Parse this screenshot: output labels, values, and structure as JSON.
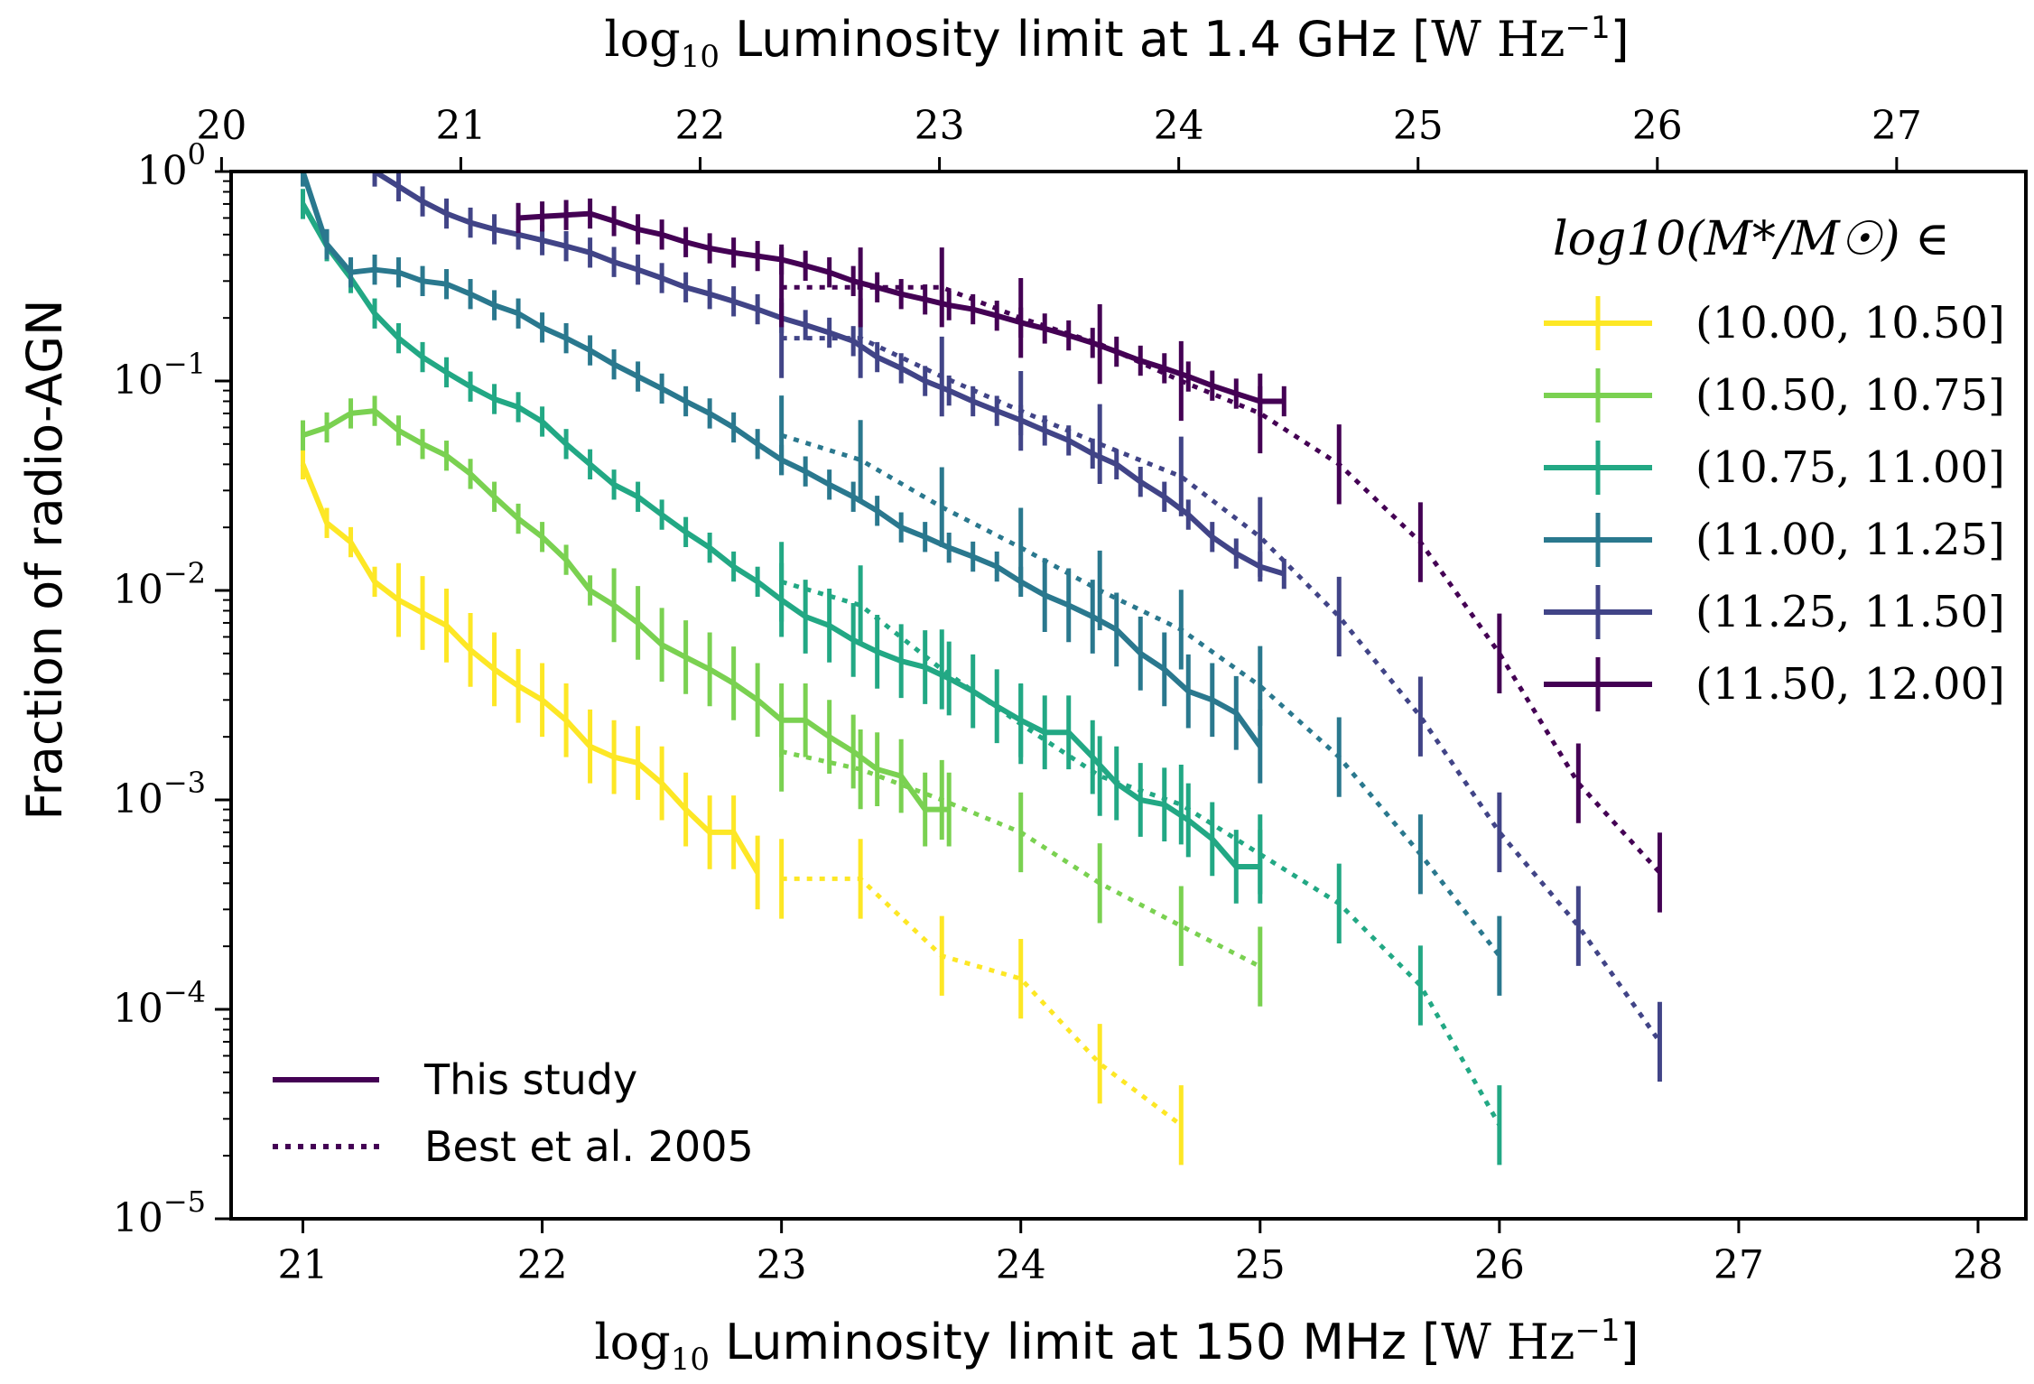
{
  "chart_data": {
    "type": "line",
    "xlabel": "log10 Luminosity limit at 150 MHz [W Hz^-1]",
    "x2label": "log10 Luminosity limit at 1.4 GHz [W Hz^-1]",
    "ylabel": "Fraction of radio-AGN",
    "xlim": [
      20.7,
      28.2
    ],
    "ylim_log10": [
      -5,
      0
    ],
    "yscale": "log",
    "x_ticks": [
      "21",
      "22",
      "23",
      "24",
      "25",
      "26",
      "27",
      "28"
    ],
    "x2_ticks": [
      "20",
      "21",
      "22",
      "23",
      "24",
      "25",
      "26",
      "27"
    ],
    "y_ticks": [
      "10^0",
      "10^-1",
      "10^-2",
      "10^-3",
      "10^-4",
      "10^-5"
    ],
    "legend_title": "log10(M*/M☉) ∈",
    "legend_placement": "top-right",
    "style_legend": [
      "This study",
      "Best et al. 2005"
    ],
    "style_legend_placement": "bottom-left",
    "series": [
      {
        "name": "(10.00, 10.50]",
        "color": "#fde725",
        "this_study": [
          [
            21.0,
            0.04
          ],
          [
            21.1,
            0.021
          ],
          [
            21.2,
            0.017
          ],
          [
            21.3,
            0.011
          ],
          [
            21.4,
            0.009
          ],
          [
            21.5,
            0.0078
          ],
          [
            21.6,
            0.0068
          ],
          [
            21.7,
            0.0052
          ],
          [
            21.8,
            0.0042
          ],
          [
            21.9,
            0.0035
          ],
          [
            22.0,
            0.003
          ],
          [
            22.1,
            0.0024
          ],
          [
            22.2,
            0.0018
          ],
          [
            22.3,
            0.0016
          ],
          [
            22.4,
            0.0015
          ],
          [
            22.5,
            0.0012
          ],
          [
            22.6,
            0.0009
          ],
          [
            22.7,
            0.0007
          ],
          [
            22.8,
            0.0007
          ],
          [
            22.9,
            0.00045
          ]
        ],
        "best2005": [
          [
            23.0,
            0.00042
          ],
          [
            23.33,
            0.00042
          ],
          [
            23.67,
            0.00018
          ],
          [
            24.0,
            0.00014
          ],
          [
            24.33,
            5.5e-05
          ],
          [
            24.67,
            2.8e-05
          ]
        ]
      },
      {
        "name": "(10.50, 10.75]",
        "color": "#7ad151",
        "this_study": [
          [
            21.0,
            0.055
          ],
          [
            21.1,
            0.06
          ],
          [
            21.2,
            0.07
          ],
          [
            21.3,
            0.072
          ],
          [
            21.4,
            0.058
          ],
          [
            21.5,
            0.05
          ],
          [
            21.6,
            0.044
          ],
          [
            21.7,
            0.036
          ],
          [
            21.8,
            0.028
          ],
          [
            21.9,
            0.022
          ],
          [
            22.0,
            0.018
          ],
          [
            22.1,
            0.014
          ],
          [
            22.2,
            0.01
          ],
          [
            22.3,
            0.0085
          ],
          [
            22.4,
            0.007
          ],
          [
            22.5,
            0.0055
          ],
          [
            22.6,
            0.0048
          ],
          [
            22.7,
            0.0042
          ],
          [
            22.8,
            0.0036
          ],
          [
            22.9,
            0.003
          ],
          [
            23.0,
            0.0024
          ],
          [
            23.1,
            0.0024
          ],
          [
            23.2,
            0.002
          ],
          [
            23.3,
            0.0017
          ],
          [
            23.4,
            0.0014
          ],
          [
            23.5,
            0.0013
          ],
          [
            23.6,
            0.0009
          ],
          [
            23.7,
            0.0009
          ]
        ],
        "best2005": [
          [
            23.0,
            0.0017
          ],
          [
            23.33,
            0.0014
          ],
          [
            23.67,
            0.001
          ],
          [
            24.0,
            0.0007
          ],
          [
            24.33,
            0.0004
          ],
          [
            24.67,
            0.00025
          ],
          [
            25.0,
            0.00016
          ]
        ]
      },
      {
        "name": "(10.75, 11.00]",
        "color": "#22a884",
        "this_study": [
          [
            21.0,
            0.7
          ],
          [
            21.1,
            0.44
          ],
          [
            21.2,
            0.31
          ],
          [
            21.3,
            0.21
          ],
          [
            21.4,
            0.16
          ],
          [
            21.5,
            0.13
          ],
          [
            21.6,
            0.11
          ],
          [
            21.7,
            0.094
          ],
          [
            21.8,
            0.082
          ],
          [
            21.9,
            0.075
          ],
          [
            22.0,
            0.064
          ],
          [
            22.1,
            0.05
          ],
          [
            22.2,
            0.04
          ],
          [
            22.3,
            0.032
          ],
          [
            22.4,
            0.028
          ],
          [
            22.5,
            0.023
          ],
          [
            22.6,
            0.019
          ],
          [
            22.7,
            0.016
          ],
          [
            22.8,
            0.013
          ],
          [
            22.9,
            0.011
          ],
          [
            23.0,
            0.009
          ],
          [
            23.1,
            0.0075
          ],
          [
            23.2,
            0.0068
          ],
          [
            23.3,
            0.0058
          ],
          [
            23.4,
            0.0051
          ],
          [
            23.5,
            0.0046
          ],
          [
            23.6,
            0.0043
          ],
          [
            23.7,
            0.0038
          ],
          [
            23.8,
            0.0033
          ],
          [
            23.9,
            0.0028
          ],
          [
            24.0,
            0.0024
          ],
          [
            24.1,
            0.0021
          ],
          [
            24.2,
            0.0021
          ],
          [
            24.3,
            0.0016
          ],
          [
            24.4,
            0.0012
          ],
          [
            24.5,
            0.001
          ],
          [
            24.6,
            0.00095
          ],
          [
            24.7,
            0.0008
          ],
          [
            24.8,
            0.00065
          ],
          [
            24.9,
            0.00048
          ],
          [
            25.0,
            0.00048
          ]
        ],
        "best2005": [
          [
            23.0,
            0.011
          ],
          [
            23.33,
            0.0085
          ],
          [
            23.67,
            0.0042
          ],
          [
            24.0,
            0.0023
          ],
          [
            24.33,
            0.0013
          ],
          [
            24.67,
            0.00095
          ],
          [
            25.0,
            0.00055
          ],
          [
            25.33,
            0.00032
          ],
          [
            25.67,
            0.00013
          ],
          [
            26.0,
            2.8e-05
          ]
        ]
      },
      {
        "name": "(11.00, 11.25]",
        "color": "#2a788e",
        "this_study": [
          [
            21.0,
            1.0
          ],
          [
            21.1,
            0.45
          ],
          [
            21.2,
            0.33
          ],
          [
            21.3,
            0.34
          ],
          [
            21.4,
            0.33
          ],
          [
            21.5,
            0.3
          ],
          [
            21.6,
            0.29
          ],
          [
            21.7,
            0.26
          ],
          [
            21.8,
            0.23
          ],
          [
            21.9,
            0.21
          ],
          [
            22.0,
            0.18
          ],
          [
            22.1,
            0.16
          ],
          [
            22.2,
            0.14
          ],
          [
            22.3,
            0.12
          ],
          [
            22.4,
            0.105
          ],
          [
            22.5,
            0.092
          ],
          [
            22.6,
            0.08
          ],
          [
            22.7,
            0.07
          ],
          [
            22.8,
            0.06
          ],
          [
            22.9,
            0.05
          ],
          [
            23.0,
            0.042
          ],
          [
            23.1,
            0.037
          ],
          [
            23.2,
            0.032
          ],
          [
            23.3,
            0.028
          ],
          [
            23.4,
            0.024
          ],
          [
            23.5,
            0.02
          ],
          [
            23.6,
            0.018
          ],
          [
            23.7,
            0.016
          ],
          [
            23.8,
            0.0145
          ],
          [
            23.9,
            0.013
          ],
          [
            24.0,
            0.011
          ],
          [
            24.1,
            0.0095
          ],
          [
            24.2,
            0.0085
          ],
          [
            24.3,
            0.0075
          ],
          [
            24.4,
            0.0065
          ],
          [
            24.5,
            0.005
          ],
          [
            24.6,
            0.0042
          ],
          [
            24.7,
            0.0033
          ],
          [
            24.8,
            0.003
          ],
          [
            24.9,
            0.0026
          ],
          [
            25.0,
            0.0018
          ]
        ],
        "best2005": [
          [
            23.0,
            0.055
          ],
          [
            23.33,
            0.042
          ],
          [
            23.67,
            0.025
          ],
          [
            24.0,
            0.016
          ],
          [
            24.33,
            0.01
          ],
          [
            24.67,
            0.0065
          ],
          [
            25.0,
            0.0035
          ],
          [
            25.33,
            0.0016
          ],
          [
            25.67,
            0.00055
          ],
          [
            26.0,
            0.00018
          ]
        ]
      },
      {
        "name": "(11.25, 11.50]",
        "color": "#414487",
        "this_study": [
          [
            21.3,
            1.0
          ],
          [
            21.4,
            0.85
          ],
          [
            21.5,
            0.72
          ],
          [
            21.6,
            0.63
          ],
          [
            21.7,
            0.57
          ],
          [
            21.8,
            0.53
          ],
          [
            21.9,
            0.5
          ],
          [
            22.0,
            0.47
          ],
          [
            22.1,
            0.44
          ],
          [
            22.2,
            0.41
          ],
          [
            22.3,
            0.37
          ],
          [
            22.4,
            0.34
          ],
          [
            22.5,
            0.31
          ],
          [
            22.6,
            0.28
          ],
          [
            22.7,
            0.26
          ],
          [
            22.8,
            0.24
          ],
          [
            22.9,
            0.22
          ],
          [
            23.0,
            0.2
          ],
          [
            23.1,
            0.185
          ],
          [
            23.2,
            0.17
          ],
          [
            23.3,
            0.155
          ],
          [
            23.4,
            0.13
          ],
          [
            23.5,
            0.115
          ],
          [
            23.6,
            0.1
          ],
          [
            23.7,
            0.09
          ],
          [
            23.8,
            0.08
          ],
          [
            23.9,
            0.072
          ],
          [
            24.0,
            0.065
          ],
          [
            24.1,
            0.058
          ],
          [
            24.2,
            0.052
          ],
          [
            24.3,
            0.045
          ],
          [
            24.4,
            0.04
          ],
          [
            24.5,
            0.033
          ],
          [
            24.6,
            0.028
          ],
          [
            24.7,
            0.023
          ],
          [
            24.8,
            0.018
          ],
          [
            24.9,
            0.015
          ],
          [
            25.0,
            0.013
          ],
          [
            25.1,
            0.012
          ]
        ],
        "best2005": [
          [
            23.0,
            0.16
          ],
          [
            23.33,
            0.16
          ],
          [
            23.67,
            0.105
          ],
          [
            24.0,
            0.072
          ],
          [
            24.33,
            0.05
          ],
          [
            24.67,
            0.035
          ],
          [
            25.0,
            0.018
          ],
          [
            25.33,
            0.0075
          ],
          [
            25.67,
            0.0025
          ],
          [
            26.0,
            0.0007
          ],
          [
            26.33,
            0.00025
          ],
          [
            26.67,
            7e-05
          ]
        ]
      },
      {
        "name": "(11.50, 12.00]",
        "color": "#440154",
        "this_study": [
          [
            21.9,
            0.6
          ],
          [
            22.0,
            0.61
          ],
          [
            22.1,
            0.62
          ],
          [
            22.2,
            0.63
          ],
          [
            22.3,
            0.58
          ],
          [
            22.4,
            0.53
          ],
          [
            22.5,
            0.5
          ],
          [
            22.6,
            0.46
          ],
          [
            22.7,
            0.43
          ],
          [
            22.8,
            0.41
          ],
          [
            22.9,
            0.395
          ],
          [
            23.0,
            0.38
          ],
          [
            23.1,
            0.355
          ],
          [
            23.2,
            0.33
          ],
          [
            23.3,
            0.3
          ],
          [
            23.4,
            0.28
          ],
          [
            23.5,
            0.26
          ],
          [
            23.6,
            0.245
          ],
          [
            23.7,
            0.23
          ],
          [
            23.8,
            0.22
          ],
          [
            23.9,
            0.205
          ],
          [
            24.0,
            0.19
          ],
          [
            24.1,
            0.178
          ],
          [
            24.2,
            0.165
          ],
          [
            24.3,
            0.152
          ],
          [
            24.4,
            0.138
          ],
          [
            24.5,
            0.125
          ],
          [
            24.6,
            0.115
          ],
          [
            24.7,
            0.105
          ],
          [
            24.8,
            0.095
          ],
          [
            24.9,
            0.087
          ],
          [
            25.0,
            0.08
          ],
          [
            25.1,
            0.08
          ]
        ],
        "best2005": [
          [
            23.0,
            0.28
          ],
          [
            23.33,
            0.28
          ],
          [
            23.67,
            0.28
          ],
          [
            24.0,
            0.2
          ],
          [
            24.33,
            0.15
          ],
          [
            24.67,
            0.1
          ],
          [
            25.0,
            0.07
          ],
          [
            25.33,
            0.04
          ],
          [
            25.67,
            0.017
          ],
          [
            26.0,
            0.005
          ],
          [
            26.33,
            0.0012
          ],
          [
            26.67,
            0.00045
          ]
        ]
      }
    ]
  }
}
